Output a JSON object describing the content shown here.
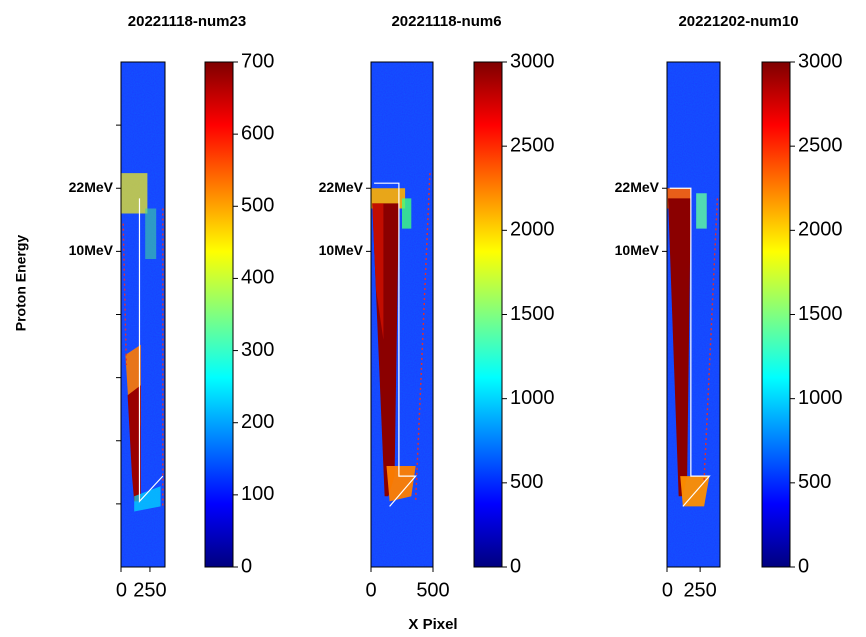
{
  "chart_data": [
    {
      "type": "image",
      "title": "20221118-num23",
      "cmap": "jet",
      "xlim": [
        0,
        380
      ],
      "xticks": [
        0,
        250
      ],
      "ylim": [
        4000,
        0
      ],
      "yticks": [
        {
          "value": 500,
          "label": null
        },
        {
          "value": 1000,
          "label": "22MeV"
        },
        {
          "value": 1500,
          "label": "10MeV"
        },
        {
          "value": 2000,
          "label": null
        },
        {
          "value": 2500,
          "label": null
        },
        {
          "value": 3000,
          "label": null
        },
        {
          "value": 3500,
          "label": null
        }
      ],
      "clim": [
        0,
        700
      ],
      "cticks": [
        0,
        100,
        200,
        300,
        400,
        500,
        600,
        700
      ]
    },
    {
      "type": "image",
      "title": "20221118-num6",
      "cmap": "jet",
      "xlim": [
        0,
        500
      ],
      "xticks": [
        0,
        500
      ],
      "ylim": [
        4000,
        0
      ],
      "yticks": [
        {
          "value": 1000,
          "label": "22MeV"
        },
        {
          "value": 1500,
          "label": "10MeV"
        }
      ],
      "clim": [
        0,
        3000
      ],
      "cticks": [
        0,
        500,
        1000,
        1500,
        2000,
        2500,
        3000
      ]
    },
    {
      "type": "image",
      "title": "20221202-num10",
      "cmap": "jet",
      "xlim": [
        0,
        400
      ],
      "xticks": [
        0,
        250
      ],
      "ylim": [
        4000,
        0
      ],
      "yticks": [
        {
          "value": 1000,
          "label": "22MeV"
        },
        {
          "value": 1500,
          "label": "10MeV"
        }
      ],
      "clim": [
        0,
        3000
      ],
      "cticks": [
        0,
        500,
        1000,
        1500,
        2000,
        2500,
        3000
      ]
    }
  ],
  "ylabel": "Proton Energy",
  "xlabel": "X Pixel"
}
